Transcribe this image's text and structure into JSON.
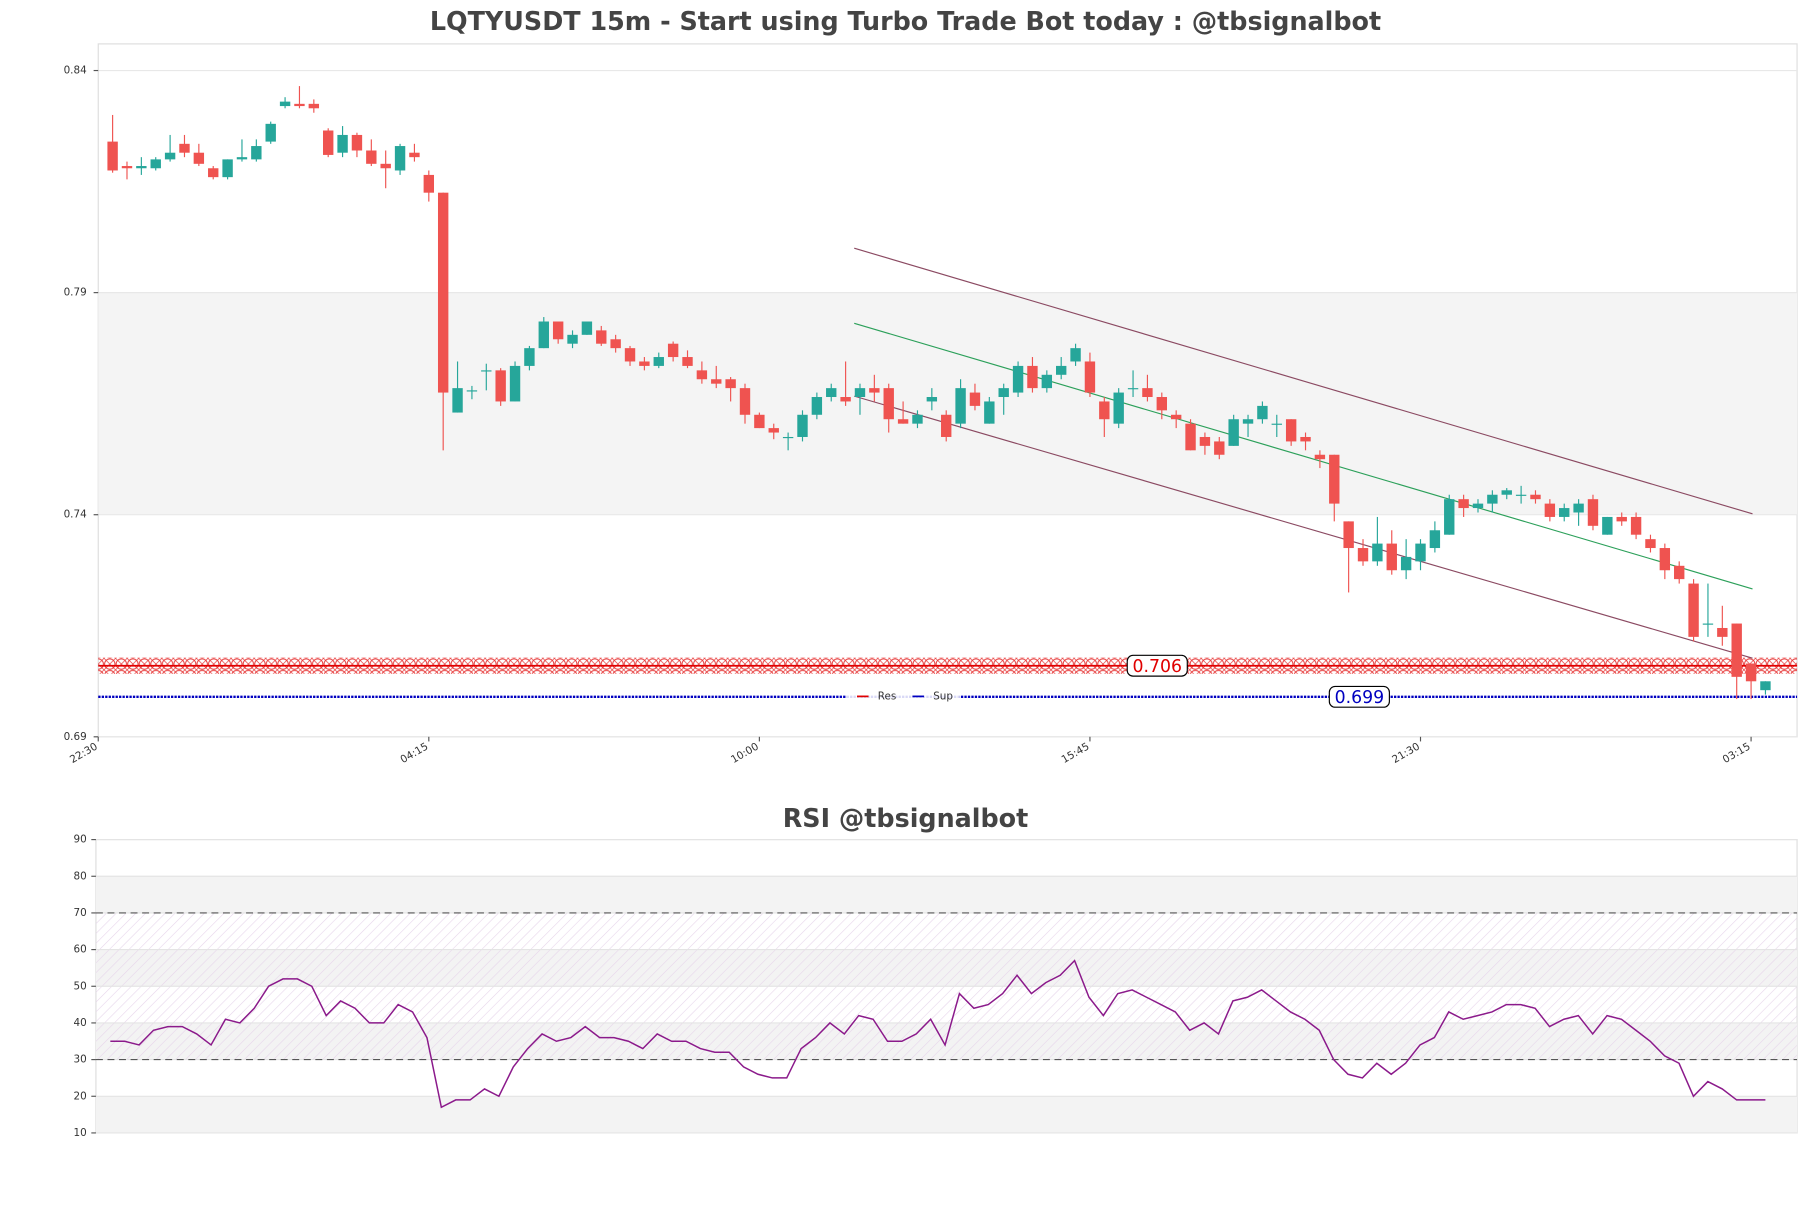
{
  "chart_data": [
    {
      "type": "candlestick",
      "title": "LQTYUSDT 15m - Start using Turbo Trade Bot today : @tbsignalbot",
      "up_color": "#26a69a",
      "down_color": "#ef5350",
      "xlim": [
        -1,
        117.2
      ],
      "xticks": [
        {
          "value": -1,
          "label": "22:30"
        },
        {
          "value": 22,
          "label": "04:15"
        },
        {
          "value": 45,
          "label": "10:00"
        },
        {
          "value": 68,
          "label": "15:45"
        },
        {
          "value": 91,
          "label": "21:30"
        },
        {
          "value": 114,
          "label": "03:15"
        }
      ],
      "ylim": [
        0.69,
        0.846
      ],
      "yticks": [
        0.69,
        0.74,
        0.79,
        0.84
      ],
      "zone": [
        0.74,
        0.79
      ],
      "ohlc": [
        [
          0.824,
          0.83,
          0.817,
          0.8175
        ],
        [
          0.8185,
          0.8195,
          0.8155,
          0.818
        ],
        [
          0.818,
          0.8205,
          0.8165,
          0.8185
        ],
        [
          0.818,
          0.8205,
          0.8175,
          0.82
        ],
        [
          0.82,
          0.8255,
          0.8195,
          0.8215
        ],
        [
          0.8235,
          0.8255,
          0.8205,
          0.8215
        ],
        [
          0.8215,
          0.8235,
          0.8185,
          0.819
        ],
        [
          0.818,
          0.8185,
          0.8155,
          0.816
        ],
        [
          0.816,
          0.82,
          0.8155,
          0.82
        ],
        [
          0.82,
          0.8245,
          0.8195,
          0.8205
        ],
        [
          0.82,
          0.8245,
          0.8195,
          0.823
        ],
        [
          0.824,
          0.8285,
          0.8235,
          0.828
        ],
        [
          0.832,
          0.834,
          0.8315,
          0.833
        ],
        [
          0.8325,
          0.8365,
          0.8315,
          0.832
        ],
        [
          0.8325,
          0.8335,
          0.8305,
          0.8315
        ],
        [
          0.8265,
          0.827,
          0.8205,
          0.821
        ],
        [
          0.8215,
          0.8275,
          0.8205,
          0.8255
        ],
        [
          0.8255,
          0.826,
          0.8205,
          0.822
        ],
        [
          0.822,
          0.8245,
          0.8185,
          0.819
        ],
        [
          0.819,
          0.822,
          0.8135,
          0.818
        ],
        [
          0.8175,
          0.8235,
          0.8165,
          0.823
        ],
        [
          0.8215,
          0.8235,
          0.8195,
          0.8205
        ],
        [
          0.8165,
          0.8175,
          0.8105,
          0.8125
        ],
        [
          0.8125,
          0.8125,
          0.7545,
          0.7675
        ],
        [
          0.763,
          0.7745,
          0.763,
          0.7685
        ],
        [
          0.768,
          0.769,
          0.766,
          0.768
        ],
        [
          0.7725,
          0.774,
          0.768,
          0.7725
        ],
        [
          0.7725,
          0.773,
          0.7645,
          0.7655
        ],
        [
          0.7655,
          0.7745,
          0.7655,
          0.7735
        ],
        [
          0.7735,
          0.778,
          0.7725,
          0.7775
        ],
        [
          0.7775,
          0.7845,
          0.7775,
          0.7835
        ],
        [
          0.7835,
          0.7835,
          0.7785,
          0.7795
        ],
        [
          0.7785,
          0.7815,
          0.7775,
          0.7805
        ],
        [
          0.7805,
          0.7835,
          0.7805,
          0.7835
        ],
        [
          0.7815,
          0.7825,
          0.778,
          0.7785
        ],
        [
          0.7795,
          0.7805,
          0.7765,
          0.7775
        ],
        [
          0.7775,
          0.778,
          0.7735,
          0.7745
        ],
        [
          0.7745,
          0.7755,
          0.7725,
          0.7735
        ],
        [
          0.7735,
          0.7765,
          0.773,
          0.7755
        ],
        [
          0.7785,
          0.779,
          0.7745,
          0.7755
        ],
        [
          0.7755,
          0.777,
          0.773,
          0.7735
        ],
        [
          0.7725,
          0.7745,
          0.7695,
          0.7705
        ],
        [
          0.7705,
          0.7735,
          0.7685,
          0.7695
        ],
        [
          0.7705,
          0.771,
          0.7655,
          0.7685
        ],
        [
          0.7685,
          0.7695,
          0.7605,
          0.7625
        ],
        [
          0.7625,
          0.763,
          0.7595,
          0.7595
        ],
        [
          0.7595,
          0.7605,
          0.757,
          0.7585
        ],
        [
          0.7575,
          0.7585,
          0.7545,
          0.7575
        ],
        [
          0.7575,
          0.7635,
          0.7565,
          0.7625
        ],
        [
          0.7625,
          0.7675,
          0.7615,
          0.7665
        ],
        [
          0.7665,
          0.7695,
          0.7655,
          0.7685
        ],
        [
          0.7665,
          0.7745,
          0.7645,
          0.7655
        ],
        [
          0.7665,
          0.7695,
          0.7625,
          0.7685
        ],
        [
          0.7685,
          0.7715,
          0.7655,
          0.7675
        ],
        [
          0.7685,
          0.7695,
          0.7585,
          0.7615
        ],
        [
          0.7615,
          0.7655,
          0.7605,
          0.7605
        ],
        [
          0.7605,
          0.7635,
          0.7595,
          0.7625
        ],
        [
          0.7655,
          0.7685,
          0.7635,
          0.7665
        ],
        [
          0.7625,
          0.7635,
          0.7565,
          0.7575
        ],
        [
          0.7605,
          0.7705,
          0.7595,
          0.7685
        ],
        [
          0.7675,
          0.7695,
          0.7635,
          0.7645
        ],
        [
          0.7605,
          0.7665,
          0.7605,
          0.7655
        ],
        [
          0.7665,
          0.7695,
          0.7625,
          0.7685
        ],
        [
          0.7675,
          0.7745,
          0.7665,
          0.7735
        ],
        [
          0.7735,
          0.7755,
          0.7675,
          0.7685
        ],
        [
          0.7685,
          0.7725,
          0.7675,
          0.7715
        ],
        [
          0.7715,
          0.7755,
          0.7705,
          0.7735
        ],
        [
          0.7745,
          0.7785,
          0.7735,
          0.7775
        ],
        [
          0.7745,
          0.7765,
          0.7665,
          0.7675
        ],
        [
          0.7655,
          0.7665,
          0.7575,
          0.7615
        ],
        [
          0.7605,
          0.7685,
          0.7595,
          0.7675
        ],
        [
          0.7685,
          0.7725,
          0.7665,
          0.7685
        ],
        [
          0.7685,
          0.7715,
          0.7655,
          0.7665
        ],
        [
          0.7665,
          0.7675,
          0.7615,
          0.7635
        ],
        [
          0.7625,
          0.7635,
          0.7595,
          0.7615
        ],
        [
          0.7605,
          0.7615,
          0.7545,
          0.7545
        ],
        [
          0.7575,
          0.7585,
          0.7535,
          0.7555
        ],
        [
          0.7565,
          0.7575,
          0.7525,
          0.7535
        ],
        [
          0.7555,
          0.7625,
          0.7555,
          0.7615
        ],
        [
          0.7605,
          0.7625,
          0.7575,
          0.7615
        ],
        [
          0.7615,
          0.7655,
          0.7605,
          0.7645
        ],
        [
          0.7605,
          0.7625,
          0.7575,
          0.7605
        ],
        [
          0.7615,
          0.7615,
          0.7555,
          0.7565
        ],
        [
          0.7575,
          0.7585,
          0.7545,
          0.7565
        ],
        [
          0.7535,
          0.7545,
          0.7505,
          0.7525
        ],
        [
          0.7535,
          0.7535,
          0.7385,
          0.7425
        ],
        [
          0.7385,
          0.7385,
          0.7225,
          0.7325
        ],
        [
          0.7325,
          0.7345,
          0.7285,
          0.7295
        ],
        [
          0.7295,
          0.7395,
          0.7285,
          0.7335
        ],
        [
          0.7335,
          0.7365,
          0.7265,
          0.7275
        ],
        [
          0.7275,
          0.7345,
          0.7255,
          0.7305
        ],
        [
          0.7295,
          0.7345,
          0.7275,
          0.7335
        ],
        [
          0.7325,
          0.7385,
          0.7315,
          0.7365
        ],
        [
          0.7355,
          0.7445,
          0.7355,
          0.7435
        ],
        [
          0.7435,
          0.7445,
          0.7395,
          0.7415
        ],
        [
          0.7415,
          0.7435,
          0.7405,
          0.7425
        ],
        [
          0.7425,
          0.7455,
          0.7405,
          0.7445
        ],
        [
          0.7445,
          0.746,
          0.7435,
          0.7455
        ],
        [
          0.7445,
          0.7465,
          0.7425,
          0.7445
        ],
        [
          0.7445,
          0.7455,
          0.7425,
          0.7435
        ],
        [
          0.7425,
          0.7435,
          0.7385,
          0.7395
        ],
        [
          0.7395,
          0.7425,
          0.7385,
          0.7415
        ],
        [
          0.7405,
          0.7435,
          0.7375,
          0.7425
        ],
        [
          0.7435,
          0.7445,
          0.7365,
          0.7375
        ],
        [
          0.7355,
          0.7395,
          0.7355,
          0.7395
        ],
        [
          0.7395,
          0.7405,
          0.7375,
          0.7385
        ],
        [
          0.7395,
          0.7405,
          0.7345,
          0.7355
        ],
        [
          0.7345,
          0.7355,
          0.7315,
          0.7325
        ],
        [
          0.7325,
          0.7335,
          0.7255,
          0.7275
        ],
        [
          0.7285,
          0.7295,
          0.7245,
          0.7255
        ],
        [
          0.7245,
          0.7255,
          0.7115,
          0.7125
        ],
        [
          0.7155,
          0.7245,
          0.7125,
          0.7155
        ],
        [
          0.7145,
          0.7195,
          0.7105,
          0.7125
        ],
        [
          0.7155,
          0.7155,
          0.6985,
          0.7035
        ],
        [
          0.7065,
          0.7065,
          0.6985,
          0.7025
        ],
        [
          0.7005,
          0.7025,
          0.6995,
          0.7025
        ]
      ],
      "channels": [
        {
          "color": "#8b4a62",
          "x": [
            51.6,
            114.1
          ],
          "y": [
            0.8,
            0.7402
          ]
        },
        {
          "color": "#2ca05a",
          "x": [
            51.6,
            114.1
          ],
          "y": [
            0.7831,
            0.7233
          ]
        },
        {
          "color": "#8b4a62",
          "x": [
            51.6,
            114.1
          ],
          "y": [
            0.7667,
            0.7077
          ]
        }
      ],
      "levels": [
        {
          "name": "Res",
          "value": 0.706,
          "color": "#e00000"
        },
        {
          "name": "Sup",
          "value": 0.699,
          "color": "#0000c0"
        }
      ]
    },
    {
      "type": "line",
      "title": "RSI @tbsignalbot",
      "color": "#8b1a8b",
      "xlim": [
        -1,
        117.2
      ],
      "ylim": [
        10,
        90
      ],
      "yticks": [
        10,
        20,
        30,
        40,
        50,
        60,
        70,
        80,
        90
      ],
      "guides": [
        30,
        70
      ],
      "values": [
        35,
        35,
        34,
        38,
        39,
        39,
        37,
        34,
        41,
        40,
        44,
        50,
        52,
        52,
        50,
        42,
        46,
        44,
        40,
        40,
        45,
        43,
        36,
        17,
        19,
        19,
        22,
        20,
        28,
        33,
        37,
        35,
        36,
        39,
        36,
        36,
        35,
        33,
        37,
        35,
        35,
        33,
        32,
        32,
        28,
        26,
        25,
        25,
        33,
        36,
        40,
        37,
        42,
        41,
        35,
        35,
        37,
        41,
        34,
        48,
        44,
        45,
        48,
        53,
        48,
        51,
        53,
        57,
        47,
        42,
        48,
        49,
        47,
        45,
        43,
        38,
        40,
        37,
        46,
        47,
        49,
        46,
        43,
        41,
        38,
        30,
        26,
        25,
        29,
        26,
        29,
        34,
        36,
        43,
        41,
        42,
        43,
        45,
        45,
        44,
        39,
        41,
        42,
        37,
        42,
        41,
        38,
        35,
        31,
        29,
        20,
        24,
        22,
        19,
        19,
        19
      ]
    }
  ]
}
